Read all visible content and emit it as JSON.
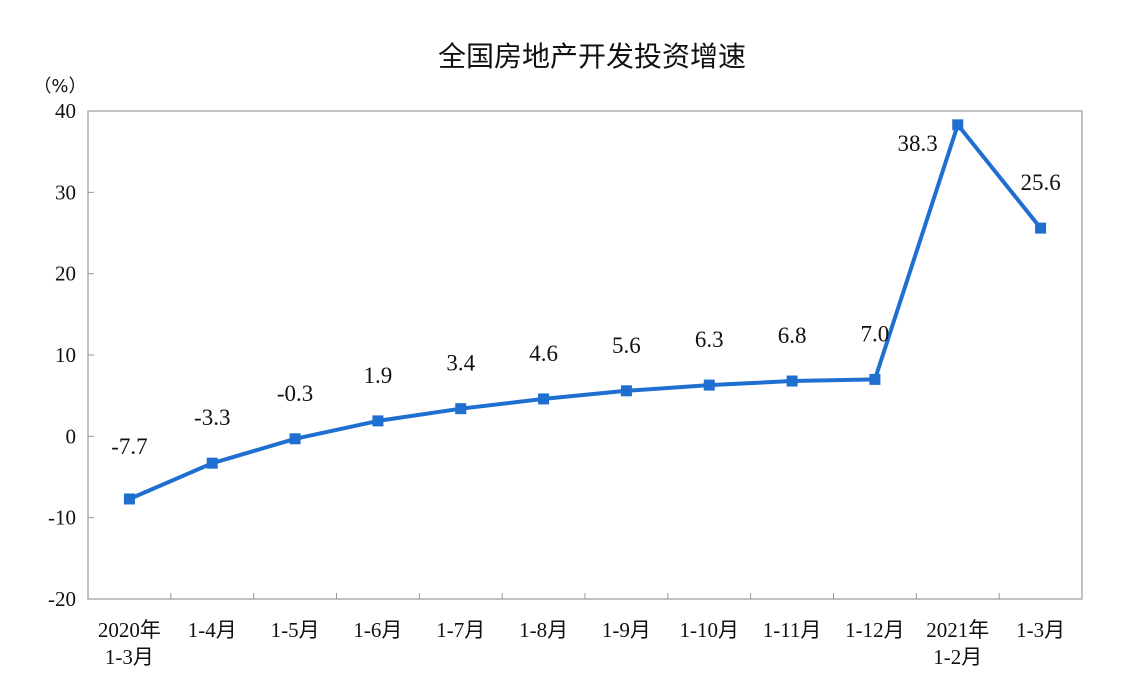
{
  "chart_data": {
    "type": "line",
    "title": "全国房地产开发投资增速",
    "ylabel": "（%）",
    "xlabel": "",
    "ylim": [
      -20,
      40
    ],
    "yticks": [
      40,
      30,
      20,
      10,
      0,
      -10,
      -20
    ],
    "ytick_labels": [
      "40",
      "30",
      "20",
      "10",
      "0",
      "-10",
      "-20"
    ],
    "categories": [
      [
        "2020年",
        "1-3月"
      ],
      [
        "1-4月"
      ],
      [
        "1-5月"
      ],
      [
        "1-6月"
      ],
      [
        "1-7月"
      ],
      [
        "1-8月"
      ],
      [
        "1-9月"
      ],
      [
        "1-10月"
      ],
      [
        "1-11月"
      ],
      [
        "1-12月"
      ],
      [
        "2021年",
        "1-2月"
      ],
      [
        "1-3月"
      ]
    ],
    "values": [
      -7.7,
      -3.3,
      -0.3,
      1.9,
      3.4,
      4.6,
      5.6,
      6.3,
      6.8,
      7.0,
      38.3,
      25.6
    ],
    "data_labels": [
      "-7.7",
      "-3.3",
      "-0.3",
      "1.9",
      "3.4",
      "4.6",
      "5.6",
      "6.3",
      "6.8",
      "7.0",
      "38.3",
      "25.6"
    ],
    "color": "#1f6fd1",
    "grid": false,
    "legend": "none"
  }
}
